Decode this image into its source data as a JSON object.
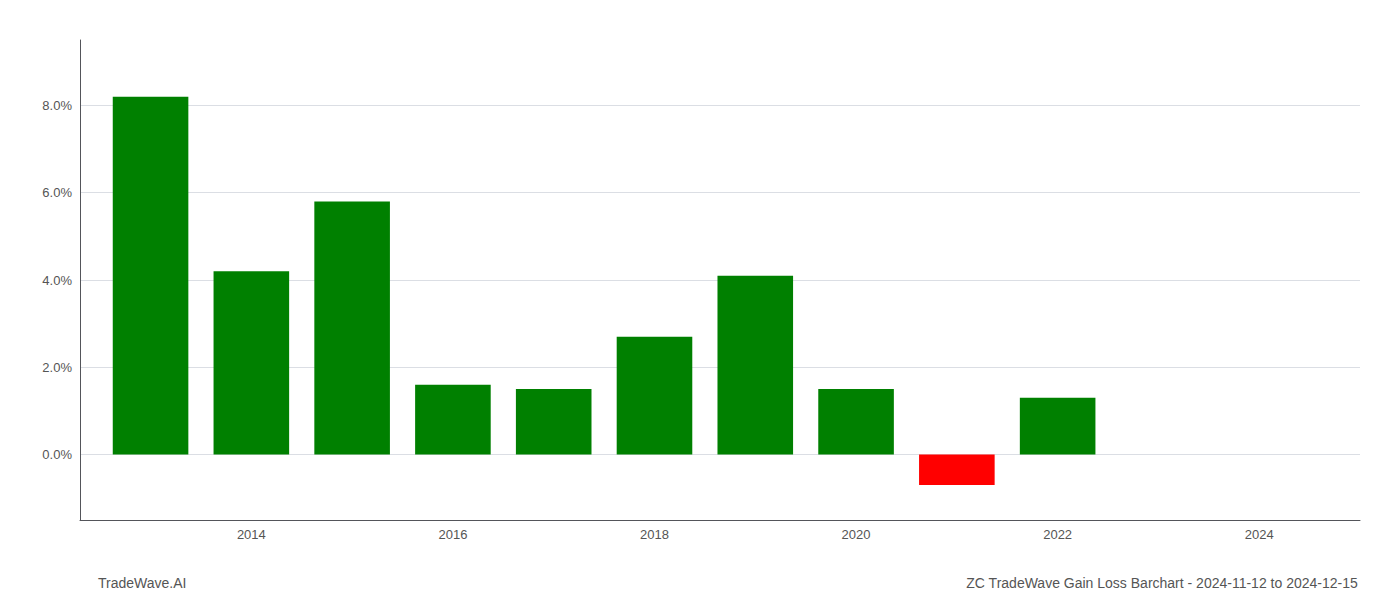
{
  "chart_data": {
    "type": "bar",
    "x": [
      2013,
      2014,
      2015,
      2016,
      2017,
      2018,
      2019,
      2020,
      2021,
      2022
    ],
    "values": [
      0.082,
      0.042,
      0.058,
      0.016,
      0.015,
      0.027,
      0.041,
      0.015,
      -0.007,
      0.013
    ],
    "colors": [
      "#008000",
      "#008000",
      "#008000",
      "#008000",
      "#008000",
      "#008000",
      "#008000",
      "#008000",
      "#ff0000",
      "#008000"
    ],
    "xlim": [
      2012.3,
      2025.0
    ],
    "xticks": [
      2014,
      2016,
      2018,
      2020,
      2022,
      2024
    ],
    "ylim": [
      -0.015,
      0.095
    ],
    "yticks": [
      {
        "value": 0.0,
        "label": "0.0%"
      },
      {
        "value": 0.02,
        "label": "2.0%"
      },
      {
        "value": 0.04,
        "label": "4.0%"
      },
      {
        "value": 0.06,
        "label": "6.0%"
      },
      {
        "value": 0.08,
        "label": "8.0%"
      }
    ],
    "grid": true,
    "annotations": [
      "TradeWave.AI",
      "ZC TradeWave Gain Loss Barchart - 2024-11-12 to 2024-12-15"
    ]
  }
}
